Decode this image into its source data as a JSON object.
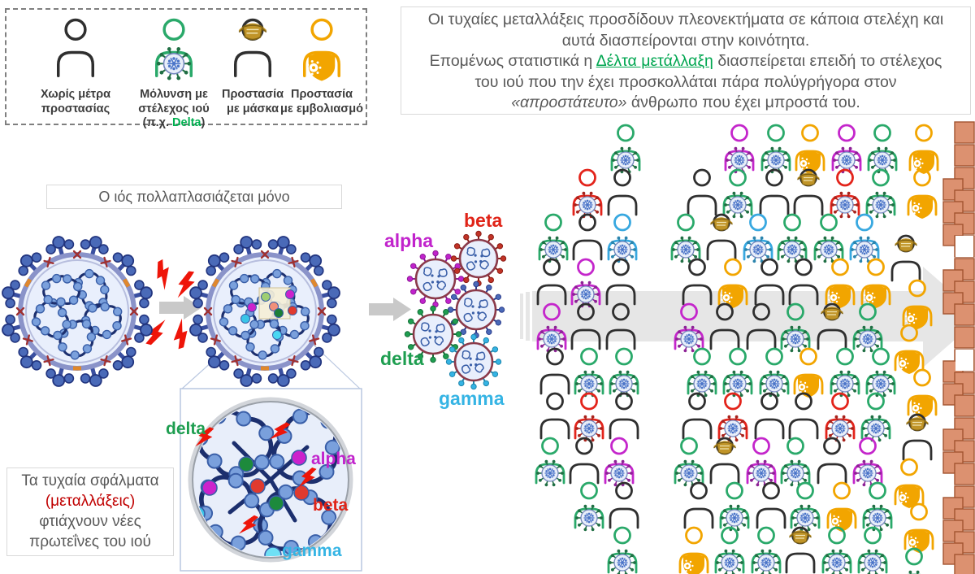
{
  "colors": {
    "black": "#2f2f2f",
    "green": "#2aa96a",
    "red": "#e3241b",
    "cyan": "#38a8e0",
    "purple": "#c426cb",
    "gold": "#f2a500",
    "mask_gold": "#c09428",
    "mask_dark": "#7c5f12",
    "text_gray": "#595959",
    "accent_green": "#00a650",
    "accent_red": "#c00000",
    "brick": "#dc9170",
    "brick_border": "#a25430",
    "arrow_gray": "#e6e6e6",
    "small_arrow_gray": "#c9c9c9",
    "virus_blue": "#4a6ab8",
    "virus_navy": "#22357f",
    "virus_body": "#e9effc",
    "virus_ring": "#8a93c9",
    "rna": "#1c2f6e",
    "node": "#7aa0dc",
    "node_border": "#3a5fa8",
    "bolt_red": "#ee1509",
    "variant_ring": "#8b3a4a",
    "alpha": "#c123cc",
    "beta": "#e02418",
    "delta": "#1e9e50",
    "gamma": "#35b4e4"
  },
  "legend": {
    "items": [
      {
        "type": "K",
        "name": "no-protection",
        "lines": [
          [
            {
              "t": "Χωρίς μέτρα"
            }
          ],
          [
            {
              "t": "προστασίας"
            }
          ]
        ]
      },
      {
        "type": "G",
        "name": "infected-strain",
        "lines": [
          [
            {
              "t": "Μόλυνση με"
            }
          ],
          [
            {
              "t": "στέλεχος ιού"
            }
          ],
          [
            {
              "t": "(π.χ. "
            },
            {
              "t": "Delta",
              "c": "acc-green-b"
            },
            {
              "t": ")"
            }
          ]
        ]
      },
      {
        "type": "M",
        "name": "mask-protection",
        "lines": [
          [
            {
              "t": "Προστασία"
            }
          ],
          [
            {
              "t": "με μάσκα"
            }
          ]
        ]
      },
      {
        "type": "V",
        "name": "vaccine-protection",
        "lines": [
          [
            {
              "t": "Προστασία"
            }
          ],
          [
            {
              "t": "με εμβολιασμό"
            }
          ]
        ]
      }
    ]
  },
  "info_box": {
    "lines": [
      [
        {
          "t": "Οι τυχαίες μεταλλάξεις προσδίδουν πλεονεκτήματα σε κάποια στελέχη και"
        }
      ],
      [
        {
          "t": "αυτά διασπείρονται στην κοινότητα."
        }
      ],
      [
        {
          "t": "Επομένως στατιστικά η "
        },
        {
          "t": "Δέλτα μετάλλαξη",
          "c": "acc-green"
        },
        {
          "t": " διασπείρεται επειδή το στέλεχος"
        }
      ],
      [
        {
          "t": "του ιού που την έχει προσκολλάται πάρα πολύγρήγορα στον"
        }
      ],
      [
        {
          "t": "«απροστάτευτο»",
          "c": "it"
        },
        {
          "t": "  άνθρωπο που έχει μπροστά του."
        }
      ]
    ]
  },
  "replicate_box": {
    "text": "Ο ιός πολλαπλασιάζεται μόνο"
  },
  "mutation_box": {
    "lines": [
      [
        {
          "t": "Τα τυχαία σφάλματα"
        }
      ],
      [
        {
          "t": "(μεταλλάξεις)",
          "c": "acc-red"
        }
      ],
      [
        {
          "t": "φτιάχνουν νέες"
        }
      ],
      [
        {
          "t": "πρωτεΐνες του ιού"
        }
      ]
    ]
  },
  "variant_labels": {
    "alpha": "alpha",
    "beta": "beta",
    "delta": "delta",
    "gamma": "gamma"
  },
  "magnifier_labels": {
    "delta": "delta",
    "alpha": "alpha",
    "beta": "beta",
    "gamma": "gamma"
  },
  "people_grid": {
    "code_meaning": {
      "K": "person-no-protection",
      "G": "person-infected-green-delta",
      "R": "person-infected-red",
      "C": "person-infected-cyan",
      "P": "person-infected-magenta",
      "M": "person-with-mask",
      "V": "person-vaccinated",
      ".": "empty"
    },
    "rows": [
      "..G.PGVPGV",
      ".RKKGKMRGV",
      "GKCGMCGGCM",
      "KPKKVKKVVV",
      "PKKPKKGMGV",
      "KGGGGGVGGV",
      "KRKKRKKRGM",
      "GKPGMPGKPV",
      ".GKKGKGVGV",
      "..GVGGMGGG"
    ]
  }
}
